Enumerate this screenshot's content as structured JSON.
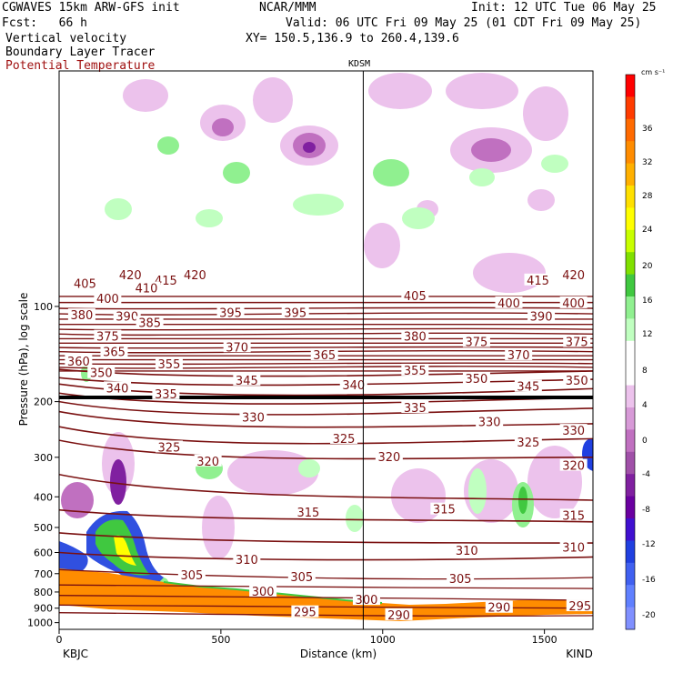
{
  "header": {
    "model": "CGWAVES 15km ARW-GFS init",
    "org": "NCAR/MMM",
    "init": "Init: 12 UTC Tue 06 May 25",
    "fcst": "Fcst:   66 h",
    "valid": "Valid: 06 UTC Fri 09 May 25 (01 CDT Fri 09 May 25)",
    "field1": "Vertical velocity",
    "xy": "XY= 150.5,136.9 to 260.4,139.6",
    "field2": "Boundary Layer Tracer",
    "field3": "Potential Temperature",
    "station_mid": "KDSM"
  },
  "colors": {
    "theta": "#7a1010",
    "terrain": "#ff8c00"
  },
  "chart_data": {
    "type": "cross-section",
    "xlabel": "Distance (km)",
    "ylabel": "Pressure (hPa), log scale",
    "xlim": [
      0,
      1650
    ],
    "ylim": [
      1050,
      18
    ],
    "y_scale": "log",
    "x_ticks": [
      0,
      500,
      1000,
      1500
    ],
    "y_ticks": [
      100,
      200,
      300,
      400,
      500,
      600,
      700,
      800,
      900,
      1000
    ],
    "x_endpoints": [
      "KBJC",
      "KIND"
    ],
    "station_marker": {
      "name": "KDSM",
      "x": 940
    },
    "colorbar": {
      "unit": "cm s⁻¹",
      "labels": [
        36,
        32,
        28,
        24,
        20,
        16,
        12,
        8,
        4,
        0,
        -4,
        -8,
        -12,
        -16,
        -20
      ],
      "colors": [
        "#ff0000",
        "#ff3c00",
        "#ff6a00",
        "#ff8c00",
        "#ffb000",
        "#ffe000",
        "#ffff00",
        "#c8ff00",
        "#80e000",
        "#40c840",
        "#90f090",
        "#c0ffc0",
        "#ffffff",
        "#ffffff",
        "#ecc2ec",
        "#d79ad7",
        "#c070c0",
        "#a050a8",
        "#8020a0",
        "#6a00a0",
        "#4010d0",
        "#2040e0",
        "#4060f0",
        "#6080ff",
        "#8090ff"
      ]
    },
    "theta_labels": [
      {
        "v": "420",
        "x": 220,
        "p": 80
      },
      {
        "v": "420",
        "x": 420,
        "p": 80
      },
      {
        "v": "415",
        "x": 330,
        "p": 83
      },
      {
        "v": "415",
        "x": 1480,
        "p": 83
      },
      {
        "v": "420",
        "x": 1590,
        "p": 80
      },
      {
        "v": "405",
        "x": 80,
        "p": 85
      },
      {
        "v": "410",
        "x": 270,
        "p": 88
      },
      {
        "v": "400",
        "x": 150,
        "p": 95
      },
      {
        "v": "405",
        "x": 1100,
        "p": 93
      },
      {
        "v": "400",
        "x": 1390,
        "p": 98
      },
      {
        "v": "400",
        "x": 1590,
        "p": 98
      },
      {
        "v": "380",
        "x": 70,
        "p": 107
      },
      {
        "v": "390",
        "x": 210,
        "p": 108
      },
      {
        "v": "385",
        "x": 280,
        "p": 113
      },
      {
        "v": "395",
        "x": 530,
        "p": 105
      },
      {
        "v": "395",
        "x": 730,
        "p": 105
      },
      {
        "v": "390",
        "x": 1490,
        "p": 108
      },
      {
        "v": "375",
        "x": 150,
        "p": 125
      },
      {
        "v": "380",
        "x": 1100,
        "p": 125
      },
      {
        "v": "375",
        "x": 1290,
        "p": 130
      },
      {
        "v": "375",
        "x": 1600,
        "p": 130
      },
      {
        "v": "365",
        "x": 170,
        "p": 140
      },
      {
        "v": "370",
        "x": 550,
        "p": 135
      },
      {
        "v": "365",
        "x": 820,
        "p": 143
      },
      {
        "v": "370",
        "x": 1420,
        "p": 143
      },
      {
        "v": "360",
        "x": 60,
        "p": 150
      },
      {
        "v": "355",
        "x": 340,
        "p": 153
      },
      {
        "v": "355",
        "x": 1100,
        "p": 160
      },
      {
        "v": "350",
        "x": 130,
        "p": 163
      },
      {
        "v": "345",
        "x": 580,
        "p": 172
      },
      {
        "v": "340",
        "x": 910,
        "p": 178
      },
      {
        "v": "350",
        "x": 1290,
        "p": 170
      },
      {
        "v": "345",
        "x": 1450,
        "p": 180
      },
      {
        "v": "350",
        "x": 1600,
        "p": 172
      },
      {
        "v": "340",
        "x": 180,
        "p": 182
      },
      {
        "v": "335",
        "x": 330,
        "p": 190
      },
      {
        "v": "335",
        "x": 1100,
        "p": 210
      },
      {
        "v": "330",
        "x": 600,
        "p": 225
      },
      {
        "v": "330",
        "x": 1330,
        "p": 233
      },
      {
        "v": "330",
        "x": 1590,
        "p": 248
      },
      {
        "v": "325",
        "x": 1450,
        "p": 270
      },
      {
        "v": "325",
        "x": 340,
        "p": 280
      },
      {
        "v": "325",
        "x": 880,
        "p": 263
      },
      {
        "v": "320",
        "x": 460,
        "p": 310
      },
      {
        "v": "320",
        "x": 1020,
        "p": 300
      },
      {
        "v": "320",
        "x": 1590,
        "p": 320
      },
      {
        "v": "315",
        "x": 770,
        "p": 450
      },
      {
        "v": "315",
        "x": 1190,
        "p": 440
      },
      {
        "v": "315",
        "x": 1590,
        "p": 460
      },
      {
        "v": "310",
        "x": 580,
        "p": 635
      },
      {
        "v": "310",
        "x": 1260,
        "p": 595
      },
      {
        "v": "310",
        "x": 1590,
        "p": 580
      },
      {
        "v": "305",
        "x": 410,
        "p": 710
      },
      {
        "v": "305",
        "x": 750,
        "p": 720
      },
      {
        "v": "305",
        "x": 1240,
        "p": 730
      },
      {
        "v": "300",
        "x": 630,
        "p": 800
      },
      {
        "v": "300",
        "x": 950,
        "p": 850
      },
      {
        "v": "295",
        "x": 760,
        "p": 930
      },
      {
        "v": "295",
        "x": 1610,
        "p": 890
      },
      {
        "v": "290",
        "x": 1050,
        "p": 950
      },
      {
        "v": "290",
        "x": 1360,
        "p": 900
      }
    ]
  }
}
